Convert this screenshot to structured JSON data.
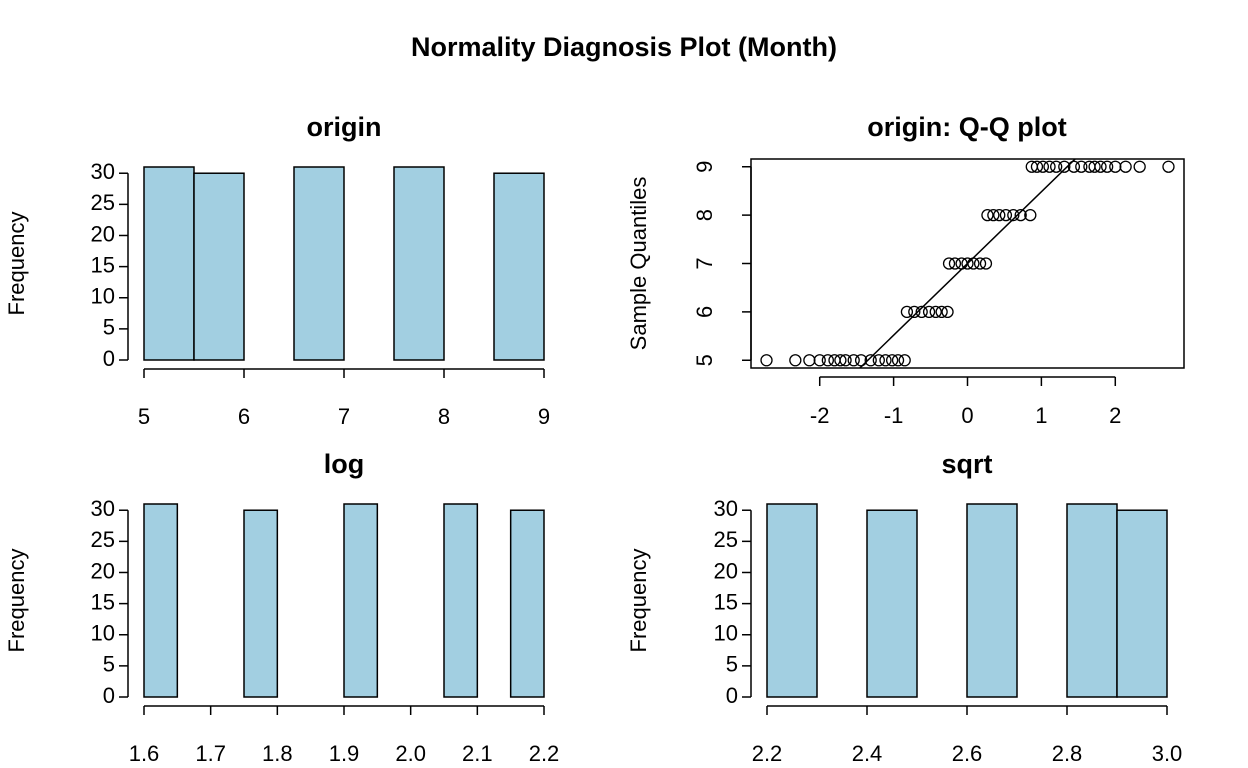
{
  "title": "Normality Diagnosis Plot (Month)",
  "chart_data": [
    {
      "type": "histogram",
      "title": "origin",
      "y_label": "Frequency",
      "color": "#a2cfe1",
      "bins": [
        5,
        5.5,
        6,
        6.5,
        7,
        7.5,
        8,
        8.5,
        9
      ],
      "values": [
        31,
        30,
        0,
        31,
        0,
        31,
        0,
        30
      ],
      "xlim": [
        5,
        9
      ],
      "xticks": [
        5,
        6,
        7,
        8,
        9
      ],
      "ylim": [
        0,
        31
      ],
      "yticks": [
        0,
        5,
        10,
        15,
        20,
        25,
        30
      ]
    },
    {
      "type": "scatter",
      "title": "origin: Q-Q plot",
      "y_label": "Sample Quantiles",
      "x": [
        -2.72,
        -2.33,
        -2.14,
        -2.0,
        -1.89,
        -1.8,
        -1.72,
        -1.65,
        -1.54,
        -1.44,
        -1.31,
        -1.2,
        -1.11,
        -1.02,
        -0.94,
        -0.85,
        -0.82,
        -0.72,
        -0.62,
        -0.52,
        -0.43,
        -0.35,
        -0.27,
        -0.25,
        -0.17,
        -0.08,
        0,
        0.08,
        0.17,
        0.25,
        0.27,
        0.35,
        0.43,
        0.52,
        0.62,
        0.72,
        0.85,
        0.87,
        0.94,
        1.02,
        1.11,
        1.2,
        1.31,
        1.44,
        1.54,
        1.65,
        1.72,
        1.8,
        1.89,
        2.0,
        2.14,
        2.33,
        2.72
      ],
      "y": [
        5,
        5,
        5,
        5,
        5,
        5,
        5,
        5,
        5,
        5,
        5,
        5,
        5,
        5,
        5,
        5,
        6,
        6,
        6,
        6,
        6,
        6,
        6,
        7,
        7,
        7,
        7,
        7,
        7,
        7,
        8,
        8,
        8,
        8,
        8,
        8,
        8,
        9,
        9,
        9,
        9,
        9,
        9,
        9,
        9,
        9,
        9,
        9,
        9,
        9,
        9,
        9,
        9
      ],
      "reference_line": {
        "slope": 1.483,
        "intercept": 7
      },
      "xlim": [
        -2.93,
        2.93
      ],
      "xticks": [
        -2,
        -1,
        0,
        1,
        2
      ],
      "ylim": [
        4.84,
        9.16
      ],
      "yticks": [
        5,
        6,
        7,
        8,
        9
      ]
    },
    {
      "type": "histogram",
      "title": "log",
      "y_label": "Frequency",
      "color": "#a2cfe1",
      "bins": [
        1.6,
        1.65,
        1.7,
        1.75,
        1.8,
        1.85,
        1.9,
        1.95,
        2.0,
        2.05,
        2.1,
        2.15,
        2.2
      ],
      "values": [
        31,
        0,
        0,
        30,
        0,
        0,
        31,
        0,
        0,
        31,
        0,
        30
      ],
      "xlim": [
        1.6,
        2.2
      ],
      "xticks": [
        1.6,
        1.7,
        1.8,
        1.9,
        {
          "value": 2,
          "label": "2.0"
        },
        2.1,
        2.2
      ],
      "ylim": [
        0,
        31
      ],
      "yticks": [
        0,
        5,
        10,
        15,
        20,
        25,
        30
      ]
    },
    {
      "type": "histogram",
      "title": "sqrt",
      "y_label": "Frequency",
      "color": "#a2cfe1",
      "bins": [
        2.2,
        2.3,
        2.4,
        2.5,
        2.6,
        2.7,
        2.8,
        2.9,
        3.0
      ],
      "values": [
        31,
        0,
        30,
        0,
        31,
        0,
        31,
        30
      ],
      "xlim": [
        2.2,
        3.0
      ],
      "xticks": [
        2.2,
        2.4,
        2.6,
        2.8,
        {
          "value": 3,
          "label": "3.0"
        }
      ],
      "ylim": [
        0,
        31
      ],
      "yticks": [
        0,
        5,
        10,
        15,
        20,
        25,
        30
      ]
    }
  ]
}
